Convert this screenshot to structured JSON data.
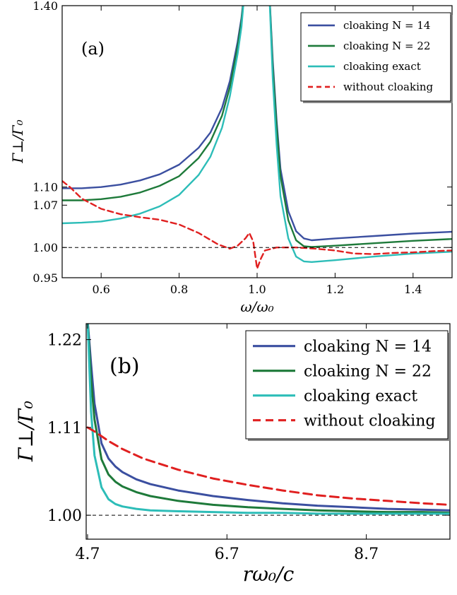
{
  "chart_data": [
    {
      "type": "line",
      "panel_label": "(a)",
      "xlabel": "ω/ω₀",
      "ylabel": "Γ⊥/Γ₀",
      "xlim": [
        0.5,
        1.5
      ],
      "ylim": [
        0.95,
        1.4
      ],
      "xticks": [
        0.6,
        0.8,
        1.0,
        1.2,
        1.4
      ],
      "xtick_labels": [
        "0.6",
        "0.8",
        "1.0",
        "1.2",
        "1.4"
      ],
      "yticks": [
        0.95,
        1.0,
        1.07,
        1.1,
        1.4
      ],
      "ytick_labels": [
        "0.95",
        "1.00",
        "1.07",
        "1.10",
        "1.40"
      ],
      "reference_line": 1.0,
      "legend_position": "top-right",
      "series": [
        {
          "name": "cloaking N = 14",
          "color": "#3b4fa0",
          "dash": "solid",
          "x": [
            0.5,
            0.55,
            0.6,
            0.65,
            0.7,
            0.75,
            0.8,
            0.85,
            0.88,
            0.91,
            0.93,
            0.95,
            0.96,
            0.97,
            1.03,
            1.04,
            1.05,
            1.06,
            1.08,
            1.1,
            1.12,
            1.14,
            1.2,
            1.3,
            1.4,
            1.5
          ],
          "y": [
            1.098,
            1.098,
            1.1,
            1.104,
            1.111,
            1.121,
            1.137,
            1.165,
            1.19,
            1.231,
            1.275,
            1.34,
            1.38,
            1.44,
            1.44,
            1.31,
            1.21,
            1.13,
            1.06,
            1.027,
            1.015,
            1.012,
            1.015,
            1.019,
            1.023,
            1.026
          ]
        },
        {
          "name": "cloaking N = 22",
          "color": "#1e7a3a",
          "dash": "solid",
          "x": [
            0.5,
            0.55,
            0.6,
            0.65,
            0.7,
            0.75,
            0.8,
            0.85,
            0.88,
            0.91,
            0.93,
            0.95,
            0.96,
            0.97,
            1.03,
            1.04,
            1.05,
            1.06,
            1.08,
            1.1,
            1.12,
            1.14,
            1.2,
            1.3,
            1.4,
            1.5
          ],
          "y": [
            1.078,
            1.078,
            1.08,
            1.084,
            1.091,
            1.102,
            1.118,
            1.148,
            1.175,
            1.218,
            1.265,
            1.332,
            1.375,
            1.44,
            1.44,
            1.3,
            1.2,
            1.118,
            1.045,
            1.012,
            1.002,
            1.001,
            1.003,
            1.007,
            1.011,
            1.014
          ]
        },
        {
          "name": "cloaking exact",
          "color": "#2dbdb8",
          "dash": "solid",
          "x": [
            0.5,
            0.55,
            0.6,
            0.65,
            0.7,
            0.75,
            0.8,
            0.85,
            0.88,
            0.91,
            0.93,
            0.95,
            0.96,
            0.97,
            1.03,
            1.04,
            1.05,
            1.06,
            1.08,
            1.1,
            1.12,
            1.14,
            1.2,
            1.3,
            1.4,
            1.5
          ],
          "y": [
            1.04,
            1.041,
            1.043,
            1.048,
            1.056,
            1.068,
            1.087,
            1.12,
            1.15,
            1.198,
            1.25,
            1.32,
            1.365,
            1.44,
            1.44,
            1.28,
            1.17,
            1.085,
            1.015,
            0.985,
            0.977,
            0.976,
            0.979,
            0.985,
            0.99,
            0.993
          ]
        },
        {
          "name": "without cloaking",
          "color": "#e02020",
          "dash": "dashed",
          "x": [
            0.5,
            0.52,
            0.55,
            0.6,
            0.65,
            0.7,
            0.75,
            0.8,
            0.85,
            0.9,
            0.93,
            0.95,
            0.97,
            0.98,
            0.99,
            1.0,
            1.01,
            1.02,
            1.05,
            1.1,
            1.15,
            1.2,
            1.25,
            1.3,
            1.35,
            1.4,
            1.45,
            1.5
          ],
          "y": [
            1.11,
            1.1,
            1.081,
            1.064,
            1.055,
            1.05,
            1.046,
            1.038,
            1.024,
            1.005,
            0.998,
            1.003,
            1.015,
            1.024,
            1.01,
            0.965,
            0.982,
            0.995,
            1.0,
            1.0,
            0.998,
            0.995,
            0.99,
            0.989,
            0.991,
            0.992,
            0.994,
            0.995
          ]
        }
      ]
    },
    {
      "type": "line",
      "panel_label": "(b)",
      "xlabel": "rω₀/c",
      "ylabel": "Γ⊥/Γ₀",
      "xlim": [
        4.68,
        9.9
      ],
      "ylim": [
        0.97,
        1.24
      ],
      "xticks": [
        4.7,
        6.7,
        8.7
      ],
      "xtick_labels": [
        "4.7",
        "6.7",
        "8.7"
      ],
      "yticks": [
        1.0,
        1.11,
        1.22
      ],
      "ytick_labels": [
        "1.00",
        "1.11",
        "1.22"
      ],
      "reference_line": 1.0,
      "legend_position": "top-right",
      "series": [
        {
          "name": "cloaking N = 14",
          "color": "#3b4fa0",
          "dash": "solid",
          "x": [
            4.7,
            4.75,
            4.8,
            4.9,
            5.0,
            5.1,
            5.2,
            5.4,
            5.6,
            6.0,
            6.5,
            7.0,
            7.5,
            8.0,
            8.5,
            9.0,
            9.5,
            9.9
          ],
          "y": [
            1.245,
            1.19,
            1.14,
            1.09,
            1.071,
            1.061,
            1.054,
            1.045,
            1.039,
            1.031,
            1.024,
            1.019,
            1.015,
            1.012,
            1.01,
            1.008,
            1.007,
            1.006
          ]
        },
        {
          "name": "cloaking N = 22",
          "color": "#1e7a3a",
          "dash": "solid",
          "x": [
            4.7,
            4.75,
            4.8,
            4.9,
            5.0,
            5.1,
            5.2,
            5.4,
            5.6,
            6.0,
            6.5,
            7.0,
            7.5,
            8.0,
            8.5,
            9.0,
            9.5,
            9.9
          ],
          "y": [
            1.245,
            1.17,
            1.12,
            1.07,
            1.051,
            1.042,
            1.036,
            1.029,
            1.024,
            1.018,
            1.013,
            1.01,
            1.008,
            1.006,
            1.005,
            1.004,
            1.004,
            1.003
          ]
        },
        {
          "name": "cloaking exact",
          "color": "#2dbdb8",
          "dash": "solid",
          "x": [
            4.7,
            4.75,
            4.8,
            4.9,
            5.0,
            5.1,
            5.2,
            5.4,
            5.6,
            6.0,
            6.5,
            7.0,
            7.5,
            8.0,
            8.5,
            9.0,
            9.5,
            9.9
          ],
          "y": [
            1.245,
            1.13,
            1.075,
            1.035,
            1.02,
            1.014,
            1.011,
            1.008,
            1.006,
            1.005,
            1.004,
            1.003,
            1.003,
            1.002,
            1.002,
            1.002,
            1.002,
            1.002
          ]
        },
        {
          "name": "without cloaking",
          "color": "#e02020",
          "dash": "dashed",
          "x": [
            4.7,
            4.8,
            5.0,
            5.2,
            5.5,
            6.0,
            6.5,
            7.0,
            7.5,
            8.0,
            8.5,
            9.0,
            9.5,
            9.9
          ],
          "y": [
            1.11,
            1.105,
            1.093,
            1.083,
            1.071,
            1.057,
            1.046,
            1.038,
            1.031,
            1.025,
            1.021,
            1.018,
            1.015,
            1.013
          ]
        }
      ]
    }
  ]
}
